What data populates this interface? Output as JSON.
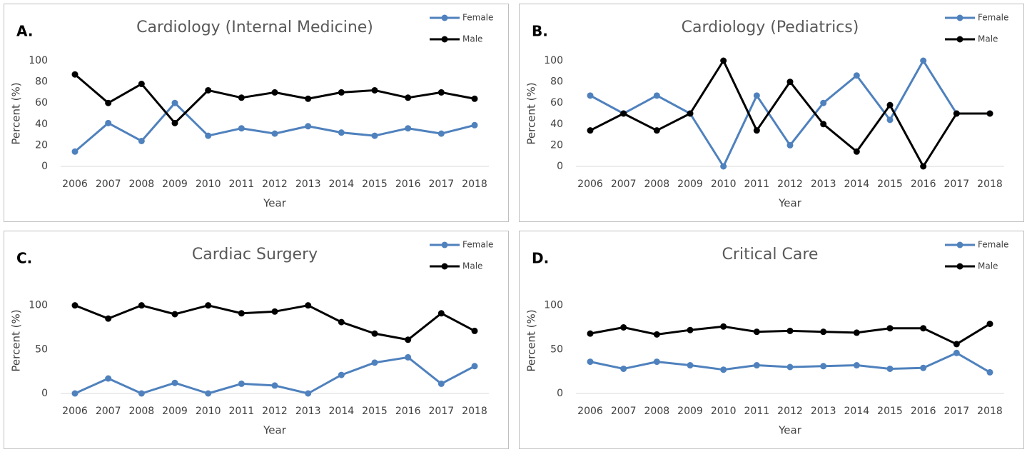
{
  "chart_data": [
    {
      "type": "line",
      "panel_label": "A.",
      "title": "Cardiology (Internal Medicine)",
      "x_label": "Year",
      "y_label": "Percent (%)",
      "categories": [
        "2006",
        "2007",
        "2008",
        "2009",
        "2010",
        "2011",
        "2012",
        "2013",
        "2014",
        "2015",
        "2016",
        "2017",
        "2018"
      ],
      "series": [
        {
          "name": "Female",
          "color": "#4f81bd",
          "values": [
            14,
            41,
            24,
            60,
            29,
            36,
            31,
            38,
            32,
            29,
            36,
            31,
            39
          ]
        },
        {
          "name": "Male",
          "color": "#000000",
          "values": [
            87,
            60,
            78,
            41,
            72,
            65,
            70,
            64,
            70,
            72,
            65,
            70,
            64
          ]
        }
      ],
      "ylim": [
        0,
        100
      ],
      "yticks": [
        0,
        20,
        40,
        60,
        80,
        100
      ],
      "legend": "top-right"
    },
    {
      "type": "line",
      "panel_label": "B.",
      "title": "Cardiology (Pediatrics)",
      "x_label": "Year",
      "y_label": "Percent (%)",
      "categories": [
        "2006",
        "2007",
        "2008",
        "2009",
        "2010",
        "2011",
        "2012",
        "2013",
        "2014",
        "2015",
        "2016",
        "2017",
        "2018"
      ],
      "series": [
        {
          "name": "Female",
          "color": "#4f81bd",
          "values": [
            67,
            50,
            67,
            50,
            0,
            67,
            20,
            60,
            86,
            44,
            100,
            50,
            50
          ]
        },
        {
          "name": "Male",
          "color": "#000000",
          "values": [
            34,
            50,
            34,
            50,
            100,
            34,
            80,
            40,
            14,
            58,
            0,
            50,
            50
          ]
        }
      ],
      "ylim": [
        0,
        100
      ],
      "yticks": [
        0,
        20,
        40,
        60,
        80,
        100
      ],
      "legend": "top-right"
    },
    {
      "type": "line",
      "panel_label": "C.",
      "title": "Cardiac Surgery",
      "x_label": "Year",
      "y_label": "Percent (%)",
      "categories": [
        "2006",
        "2007",
        "2008",
        "2009",
        "2010",
        "2011",
        "2012",
        "2013",
        "2014",
        "2015",
        "2016",
        "2017",
        "2018"
      ],
      "series": [
        {
          "name": "Female",
          "color": "#4f81bd",
          "values": [
            0,
            17,
            0,
            12,
            0,
            11,
            9,
            0,
            21,
            35,
            41,
            11,
            31
          ]
        },
        {
          "name": "Male",
          "color": "#000000",
          "values": [
            100,
            85,
            100,
            90,
            100,
            91,
            93,
            100,
            81,
            68,
            61,
            91,
            71
          ]
        }
      ],
      "ylim": [
        0,
        120
      ],
      "yticks": [
        0,
        50,
        100
      ],
      "legend": "top-right"
    },
    {
      "type": "line",
      "panel_label": "D.",
      "title": "Critical Care",
      "x_label": "Year",
      "y_label": "Percent (%)",
      "categories": [
        "2006",
        "2007",
        "2008",
        "2009",
        "2010",
        "2011",
        "2012",
        "2013",
        "2014",
        "2015",
        "2016",
        "2017",
        "2018"
      ],
      "series": [
        {
          "name": "Female",
          "color": "#4f81bd",
          "values": [
            36,
            28,
            36,
            32,
            27,
            32,
            30,
            31,
            32,
            28,
            29,
            46,
            24
          ]
        },
        {
          "name": "Male",
          "color": "#000000",
          "values": [
            68,
            75,
            67,
            72,
            76,
            70,
            71,
            70,
            69,
            74,
            74,
            56,
            79
          ]
        }
      ],
      "ylim": [
        0,
        120
      ],
      "yticks": [
        0,
        50,
        100
      ],
      "legend": "top-right"
    }
  ]
}
